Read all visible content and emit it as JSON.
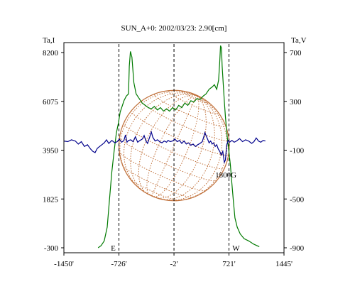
{
  "chart_data": {
    "type": "line",
    "title": "SUN_A+0: 2002/03/23: 2.90[cm]",
    "y_left_label": "Ta,I",
    "y_right_label": "Ta,V",
    "x_ticks": [
      {
        "value": -1450,
        "label": "-1450'"
      },
      {
        "value": -726,
        "label": "-726'"
      },
      {
        "value": -2,
        "label": "-2'"
      },
      {
        "value": 721,
        "label": "721'"
      },
      {
        "value": 1445,
        "label": "1445'"
      }
    ],
    "xlim": [
      -1450,
      1445
    ],
    "y_left_ticks": [
      {
        "value": 8200,
        "label": "8200"
      },
      {
        "value": 6075,
        "label": "6075"
      },
      {
        "value": 3950,
        "label": "3950"
      },
      {
        "value": 1825,
        "label": "1825"
      },
      {
        "value": -300,
        "label": "-300"
      }
    ],
    "y_left_lim": [
      -300,
      8200
    ],
    "y_right_ticks": [
      {
        "value": 700,
        "label": "700"
      },
      {
        "value": 300,
        "label": "300"
      },
      {
        "value": -100,
        "label": "-100"
      },
      {
        "value": -500,
        "label": "-500"
      },
      {
        "value": -900,
        "label": "-900"
      }
    ],
    "y_right_lim": [
      -900,
      700
    ],
    "markers": [
      {
        "x": -726,
        "label": "E"
      },
      {
        "x": -2,
        "label": ""
      },
      {
        "x": 721,
        "label": "W"
      }
    ],
    "annotation": {
      "text": "1800G",
      "x": 680,
      "y_left": 2700
    },
    "series": [
      {
        "axis": "left",
        "color": "#007a00",
        "points": [
          [
            -1000,
            -300
          ],
          [
            -960,
            -200
          ],
          [
            -920,
            0
          ],
          [
            -880,
            600
          ],
          [
            -850,
            1800
          ],
          [
            -820,
            3000
          ],
          [
            -790,
            3900
          ],
          [
            -760,
            4700
          ],
          [
            -735,
            5100
          ],
          [
            -710,
            5600
          ],
          [
            -690,
            5800
          ],
          [
            -660,
            6100
          ],
          [
            -630,
            6300
          ],
          [
            -600,
            6400
          ],
          [
            -590,
            7600
          ],
          [
            -575,
            8250
          ],
          [
            -555,
            8000
          ],
          [
            -530,
            6900
          ],
          [
            -500,
            6400
          ],
          [
            -460,
            6200
          ],
          [
            -420,
            6000
          ],
          [
            -380,
            5900
          ],
          [
            -340,
            5800
          ],
          [
            -300,
            5750
          ],
          [
            -260,
            5850
          ],
          [
            -220,
            5700
          ],
          [
            -180,
            5800
          ],
          [
            -140,
            5650
          ],
          [
            -100,
            5750
          ],
          [
            -60,
            5650
          ],
          [
            -20,
            5800
          ],
          [
            20,
            5700
          ],
          [
            60,
            5900
          ],
          [
            100,
            5800
          ],
          [
            140,
            6000
          ],
          [
            180,
            5900
          ],
          [
            220,
            6100
          ],
          [
            260,
            6050
          ],
          [
            300,
            6200
          ],
          [
            340,
            6150
          ],
          [
            380,
            6300
          ],
          [
            420,
            6400
          ],
          [
            460,
            6600
          ],
          [
            500,
            6700
          ],
          [
            530,
            6800
          ],
          [
            560,
            6600
          ],
          [
            585,
            7000
          ],
          [
            600,
            7800
          ],
          [
            610,
            8500
          ],
          [
            622,
            8400
          ],
          [
            632,
            7600
          ],
          [
            645,
            6900
          ],
          [
            660,
            6100
          ],
          [
            675,
            5400
          ],
          [
            690,
            4800
          ],
          [
            705,
            4300
          ],
          [
            720,
            3900
          ],
          [
            740,
            3300
          ],
          [
            760,
            2500
          ],
          [
            780,
            1700
          ],
          [
            800,
            1000
          ],
          [
            830,
            600
          ],
          [
            870,
            300
          ],
          [
            920,
            100
          ],
          [
            980,
            0
          ],
          [
            1050,
            -150
          ],
          [
            1120,
            -250
          ]
        ]
      },
      {
        "axis": "right",
        "color": "#00008b",
        "points": [
          [
            -1450,
            -25
          ],
          [
            -1400,
            -30
          ],
          [
            -1350,
            -15
          ],
          [
            -1300,
            -25
          ],
          [
            -1260,
            -50
          ],
          [
            -1220,
            -30
          ],
          [
            -1180,
            -70
          ],
          [
            -1140,
            -55
          ],
          [
            -1100,
            -90
          ],
          [
            -1070,
            -110
          ],
          [
            -1040,
            -120
          ],
          [
            -1010,
            -85
          ],
          [
            -980,
            -70
          ],
          [
            -950,
            -55
          ],
          [
            -920,
            -40
          ],
          [
            -890,
            -15
          ],
          [
            -860,
            -45
          ],
          [
            -820,
            -20
          ],
          [
            -780,
            -40
          ],
          [
            -750,
            -30
          ],
          [
            -720,
            -10
          ],
          [
            -690,
            -35
          ],
          [
            -660,
            -20
          ],
          [
            -640,
            25
          ],
          [
            -620,
            -35
          ],
          [
            -600,
            -20
          ],
          [
            -570,
            -15
          ],
          [
            -540,
            -30
          ],
          [
            -510,
            10
          ],
          [
            -480,
            -35
          ],
          [
            -450,
            -20
          ],
          [
            -420,
            -10
          ],
          [
            -395,
            20
          ],
          [
            -370,
            -25
          ],
          [
            -350,
            -45
          ],
          [
            -320,
            10
          ],
          [
            -300,
            50
          ],
          [
            -280,
            5
          ],
          [
            -250,
            -25
          ],
          [
            -220,
            -15
          ],
          [
            -190,
            -30
          ],
          [
            -160,
            -40
          ],
          [
            -130,
            -25
          ],
          [
            -100,
            -35
          ],
          [
            -80,
            -20
          ],
          [
            -50,
            -30
          ],
          [
            -20,
            -25
          ],
          [
            10,
            -10
          ],
          [
            40,
            -30
          ],
          [
            70,
            -20
          ],
          [
            100,
            -45
          ],
          [
            130,
            -25
          ],
          [
            160,
            -50
          ],
          [
            190,
            -40
          ],
          [
            220,
            -60
          ],
          [
            250,
            -50
          ],
          [
            280,
            -70
          ],
          [
            310,
            -55
          ],
          [
            340,
            -45
          ],
          [
            370,
            -30
          ],
          [
            390,
            10
          ],
          [
            405,
            45
          ],
          [
            420,
            20
          ],
          [
            440,
            -10
          ],
          [
            460,
            -40
          ],
          [
            480,
            -25
          ],
          [
            500,
            -50
          ],
          [
            520,
            -40
          ],
          [
            540,
            -70
          ],
          [
            560,
            -55
          ],
          [
            580,
            -90
          ],
          [
            600,
            -110
          ],
          [
            620,
            -140
          ],
          [
            640,
            -110
          ],
          [
            660,
            -200
          ],
          [
            675,
            -180
          ],
          [
            690,
            -60
          ],
          [
            710,
            -20
          ],
          [
            730,
            -35
          ],
          [
            760,
            -20
          ],
          [
            790,
            -35
          ],
          [
            820,
            -25
          ],
          [
            860,
            -5
          ],
          [
            900,
            -30
          ],
          [
            940,
            -15
          ],
          [
            980,
            -25
          ],
          [
            1020,
            -45
          ],
          [
            1050,
            -30
          ],
          [
            1080,
            0
          ],
          [
            1110,
            -25
          ],
          [
            1140,
            -35
          ],
          [
            1170,
            -20
          ],
          [
            1200,
            -25
          ]
        ]
      }
    ],
    "overlay": {
      "type": "solar-disk-grid",
      "color": "#c0703a",
      "center_x": 0,
      "radius_x_units": 726
    }
  }
}
